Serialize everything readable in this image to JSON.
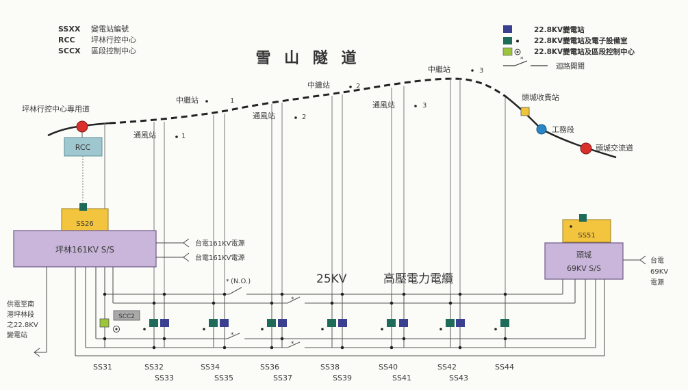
{
  "title": "雪 山 隧 道",
  "top_legend": [
    {
      "code": "SSXX",
      "desc": "變電站編號"
    },
    {
      "code": "RCC",
      "desc": "坪林行控中心"
    },
    {
      "code": "SCCX",
      "desc": "區段控制中心"
    }
  ],
  "right_legend": [
    {
      "desc": "22.8KV變電站",
      "color": "#3a3f8f"
    },
    {
      "desc": "22.8KV變電站及電子設備室",
      "color": "#1f6b5a"
    },
    {
      "desc": "22.8KV變電站及區段控制中心",
      "color": "#9cc43c"
    },
    {
      "desc": "迴路開關"
    }
  ],
  "tunnel_labels": {
    "left_portal": "坪林行控中心專用道",
    "right_toll": "頭城收費站",
    "right_work": "工務段",
    "right_interchange": "頭城交流道",
    "mid_station_1": "中繼站",
    "mid_station_1_num": "1",
    "mid_station_2": "中繼站",
    "mid_station_2_num": "2",
    "mid_station_3": "中繼站",
    "mid_station_3_num": "3",
    "vent_1": "通風站",
    "vent_1_num": "1",
    "vent_2": "通風站",
    "vent_2_num": "2",
    "vent_3": "通風站",
    "vent_3_num": "3"
  },
  "rcc": "RCC",
  "ss26": "SS26",
  "ss51": "SS51",
  "pinglin_ss": "坪林161KV S/S",
  "toucheng_ss_line1": "頭城",
  "toucheng_ss_line2": "69KV S/S",
  "feed_labels": {
    "taipower_1": "台電161KV電源",
    "taipower_2": "台電161KV電源",
    "toucheng_power_1": "台電",
    "toucheng_power_2": "69KV",
    "toucheng_power_3": "電源",
    "left_supply_1": "供電至南",
    "left_supply_2": "港坪林段",
    "left_supply_3": "之22.8KV",
    "left_supply_4": "變電站"
  },
  "cable_label_voltage": "25KV",
  "cable_label_name": "高壓電力電纜",
  "no_label": "(N.O.)",
  "scc2": "SCC2",
  "substations_top": [
    "SS31",
    "SS32",
    "SS34",
    "SS36",
    "SS38",
    "SS40",
    "SS42",
    "SS44"
  ],
  "substations_bottom": [
    "SS33",
    "SS35",
    "SS37",
    "SS39",
    "SS41",
    "SS43"
  ]
}
